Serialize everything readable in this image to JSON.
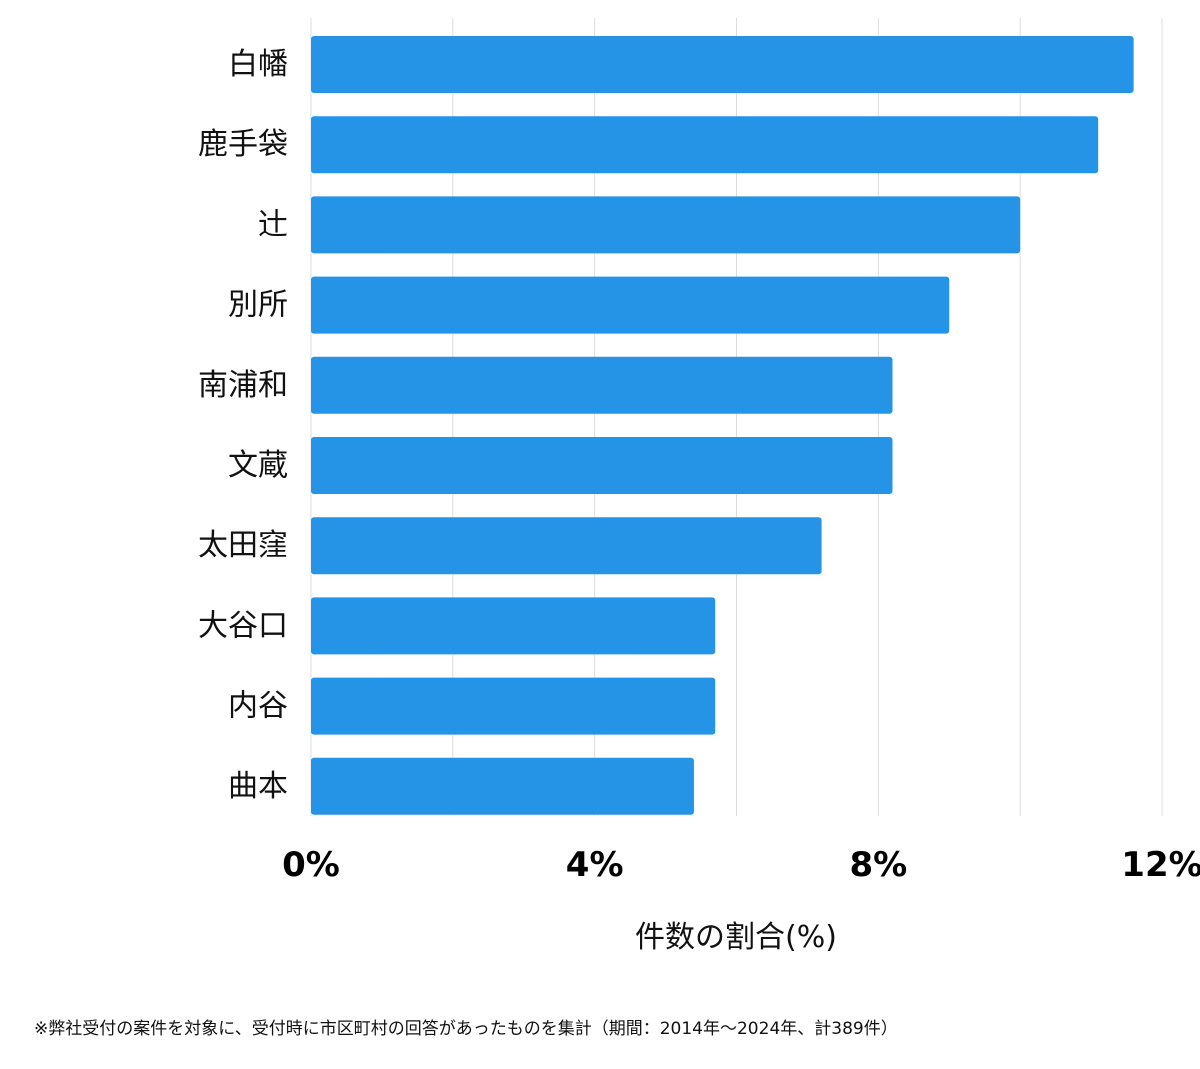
{
  "chart_data": {
    "type": "bar",
    "orientation": "horizontal",
    "categories": [
      "白幡",
      "鹿手袋",
      "辻",
      "別所",
      "南浦和",
      "文蔵",
      "太田窪",
      "大谷口",
      "内谷",
      "曲本"
    ],
    "values": [
      11.6,
      11.1,
      10.0,
      9.0,
      8.2,
      8.2,
      7.2,
      5.7,
      5.7,
      5.4
    ],
    "xlabel": "件数の割合(%)",
    "ylabel": "",
    "xlim": [
      0,
      12
    ],
    "xticks": [
      {
        "value": 0,
        "label": "0%"
      },
      {
        "value": 4,
        "label": "4%"
      },
      {
        "value": 8,
        "label": "8%"
      },
      {
        "value": 12,
        "label": "12%"
      }
    ],
    "gridlines": [
      0,
      2,
      4,
      6,
      8,
      10,
      12
    ],
    "bar_color": "#2694e6",
    "grid_color": "#dddddd"
  },
  "footnote": "※弊社受付の案件を対象に、受付時に市区町村の回答があったものを集計（期間：2014年～2024年、計389件）"
}
